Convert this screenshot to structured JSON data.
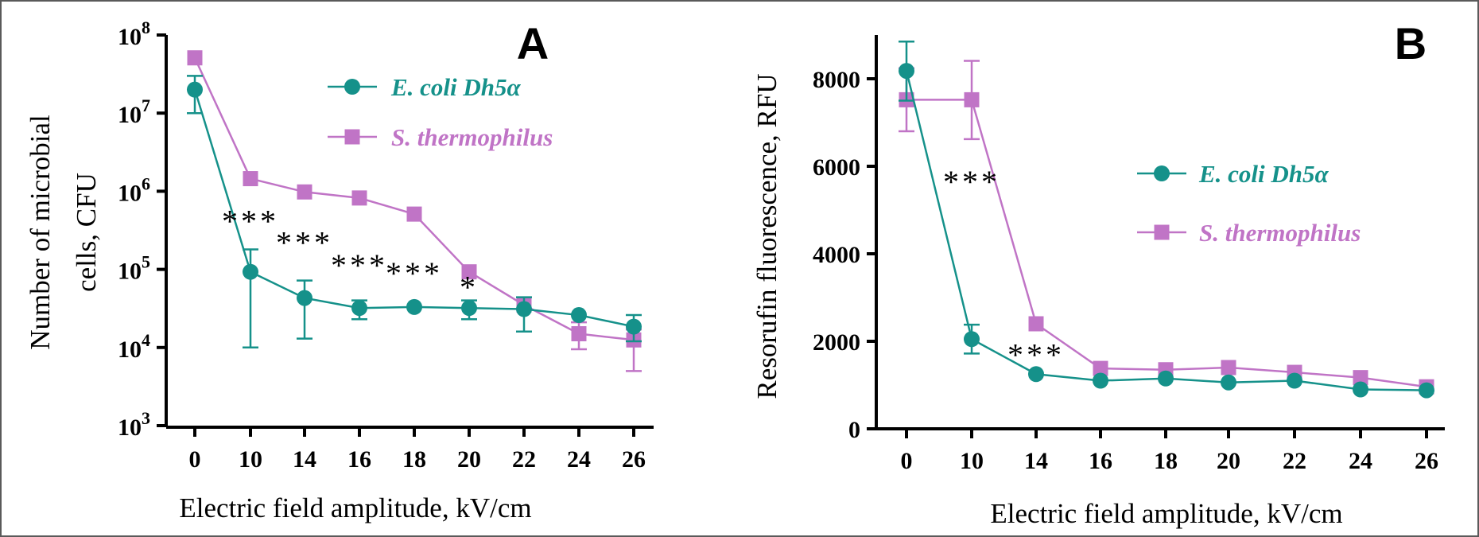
{
  "colors": {
    "ecoli": "#15918a",
    "sthermo": "#c074c6",
    "axis": "#000000"
  },
  "chart_data": [
    {
      "type": "line",
      "panel_label": "A",
      "xlabel": "Electric field amplitude, kV/cm",
      "ylabel_lines": [
        "Number of microbial",
        "cells, CFU"
      ],
      "yscale": "log",
      "ylim": [
        1000,
        100000000
      ],
      "yticks": [
        {
          "value": 1000,
          "base": "10",
          "exp": "3"
        },
        {
          "value": 10000,
          "base": "10",
          "exp": "4"
        },
        {
          "value": 100000,
          "base": "10",
          "exp": "5"
        },
        {
          "value": 1000000,
          "base": "10",
          "exp": "6"
        },
        {
          "value": 10000000,
          "base": "10",
          "exp": "7"
        },
        {
          "value": 100000000,
          "base": "10",
          "exp": "8"
        }
      ],
      "categories": [
        "0",
        "10",
        "14",
        "16",
        "18",
        "20",
        "22",
        "24",
        "26"
      ],
      "series": [
        {
          "name": "E. coli Dh5α",
          "marker": "circle",
          "color": "#15918a",
          "values": [
            20000000,
            93000,
            43000,
            32000,
            33000,
            32000,
            31000,
            26000,
            18500
          ],
          "err_low": [
            10000000,
            10000,
            13000,
            23000,
            33000,
            23000,
            16000,
            26000,
            12000
          ],
          "err_high": [
            30000000,
            180000,
            72000,
            40000,
            33000,
            40000,
            44000,
            26000,
            26000
          ]
        },
        {
          "name": "S. thermophilus",
          "marker": "square",
          "color": "#c074c6",
          "values": [
            51000000,
            1450000,
            980000,
            820000,
            510000,
            93000,
            35000,
            15000,
            12500
          ],
          "err_low": [
            51000000,
            1450000,
            980000,
            820000,
            510000,
            93000,
            35000,
            9500,
            5000
          ],
          "err_high": [
            51000000,
            1450000,
            980000,
            820000,
            510000,
            93000,
            35000,
            21000,
            17000
          ]
        }
      ],
      "annotations": [
        {
          "text": "***",
          "x_index": 1,
          "y_value": 300000
        },
        {
          "text": "***",
          "x_index": 2,
          "y_value": 160000
        },
        {
          "text": "***",
          "x_index": 3,
          "y_value": 82000
        },
        {
          "text": "***",
          "x_index": 4,
          "y_value": 65000
        },
        {
          "text": "*",
          "x_index": 5,
          "y_value": 43000
        }
      ],
      "legend_position": "top-right"
    },
    {
      "type": "line",
      "panel_label": "B",
      "xlabel": "Electric field amplitude, kV/cm",
      "ylabel_lines": [
        "Resorufin fluorescence, RFU"
      ],
      "yscale": "linear",
      "ylim": [
        0,
        9000
      ],
      "yticks": [
        {
          "value": 0,
          "label": "0"
        },
        {
          "value": 2000,
          "label": "2000"
        },
        {
          "value": 4000,
          "label": "4000"
        },
        {
          "value": 6000,
          "label": "6000"
        },
        {
          "value": 8000,
          "label": "8000"
        }
      ],
      "categories": [
        "0",
        "10",
        "14",
        "16",
        "18",
        "20",
        "22",
        "24",
        "26"
      ],
      "series": [
        {
          "name": "E. coli Dh5α",
          "marker": "circle",
          "color": "#15918a",
          "values": [
            8180,
            2050,
            1250,
            1100,
            1150,
            1060,
            1100,
            900,
            880
          ],
          "err_low": [
            7500,
            1720,
            1250,
            1100,
            1150,
            1060,
            1100,
            900,
            880
          ],
          "err_high": [
            8850,
            2380,
            1250,
            1100,
            1150,
            1060,
            1100,
            900,
            880
          ]
        },
        {
          "name": "S. thermophilus",
          "marker": "square",
          "color": "#c074c6",
          "values": [
            7520,
            7520,
            2400,
            1380,
            1350,
            1400,
            1290,
            1170,
            960
          ],
          "err_low": [
            6800,
            6620,
            2400,
            1380,
            1350,
            1400,
            1290,
            1170,
            960
          ],
          "err_high": [
            8240,
            8410,
            2400,
            1380,
            1350,
            1400,
            1290,
            1170,
            960
          ]
        }
      ],
      "annotations": [
        {
          "text": "***",
          "x_index": 1,
          "y_value": 5400
        },
        {
          "text": "***",
          "x_index": 2,
          "y_value": 1450
        }
      ],
      "legend_position": "right"
    }
  ]
}
